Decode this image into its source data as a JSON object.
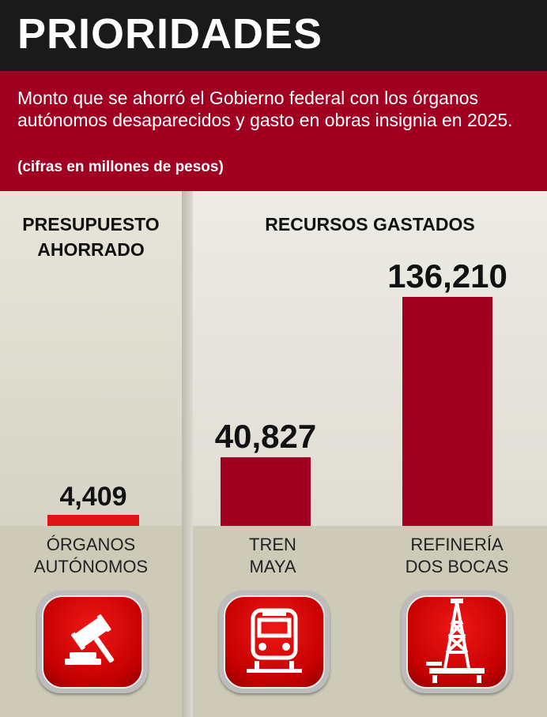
{
  "header": {
    "title": "PRIORIDADES"
  },
  "subheader": {
    "text": "Monto que se ahorró el Gobierno federal con los órganos autónomos desaparecidos y gasto en obras insignia en 2025.",
    "units": "(cifras en millones de pesos)"
  },
  "sections": {
    "left_title": "PRESUPUESTO AHORRADO",
    "right_title": "RECURSOS GASTADOS"
  },
  "chart_data": {
    "type": "bar",
    "categories": [
      "ÓRGANOS AUTÓNOMOS",
      "TREN MAYA",
      "REFINERÍA DOS BOCAS"
    ],
    "values": [
      4409,
      40827,
      136210
    ],
    "value_labels": [
      "4,409",
      "40,827",
      "136,210"
    ],
    "title": "PRIORIDADES",
    "xlabel": "",
    "ylabel": "",
    "colors": [
      "#e01414",
      "#a20021",
      "#a20021"
    ]
  },
  "labels": {
    "cat1_line1": "ÓRGANOS",
    "cat1_line2": "AUTÓNOMOS",
    "cat2_line1": "TREN",
    "cat2_line2": "MAYA",
    "cat3_line1": "REFINERÍA",
    "cat3_line2": "DOS BOCAS"
  },
  "icons": [
    "gavel-icon",
    "train-icon",
    "oil-rig-icon"
  ],
  "colors": {
    "header": "#1a1a1a",
    "accent": "#a20021",
    "bar_highlight": "#e01414"
  }
}
